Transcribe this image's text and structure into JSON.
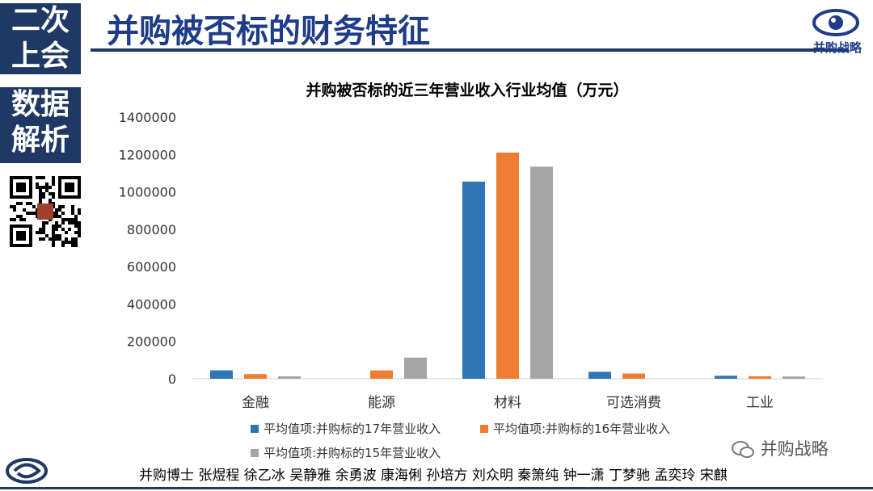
{
  "sidebar": {
    "box1_line1": "二次",
    "box1_line2": "上会",
    "box2_line1": "数据",
    "box2_line2": "解析"
  },
  "header": {
    "title": "并购被否标的财务特征",
    "logo_text": "并购战略"
  },
  "footer": {
    "authors": "并购博士 张煜程 徐乙冰 吴静雅 余勇波 康海俐 孙培方 刘众明 秦箫纯 钟一潇 丁梦驰 孟奕玲 宋麒",
    "wechat_label": "并购战略"
  },
  "colors": {
    "navy": "#1f3864",
    "series17": "#2e75b6",
    "series16": "#ed7d31",
    "series15": "#a5a5a5"
  },
  "chart_data": {
    "type": "bar",
    "title": "并购被否标的近三年营业收入行业均值（万元）",
    "categories": [
      "金融",
      "能源",
      "材料",
      "可选消费",
      "工业"
    ],
    "series": [
      {
        "name": "平均值项:并购标的17年营业收入",
        "values": [
          45000,
          0,
          1055000,
          37000,
          16000
        ]
      },
      {
        "name": "平均值项:并购标的16年营业收入",
        "values": [
          25000,
          45000,
          1210000,
          28000,
          13000
        ]
      },
      {
        "name": "平均值项:并购标的15年营业收入",
        "values": [
          13000,
          113000,
          1135000,
          0,
          12000
        ]
      }
    ],
    "ylim": [
      0,
      1400000
    ],
    "yticks": [
      "0",
      "200000",
      "400000",
      "600000",
      "800000",
      "1000000",
      "1200000",
      "1400000"
    ],
    "grid": false,
    "legend_position": "bottom"
  }
}
